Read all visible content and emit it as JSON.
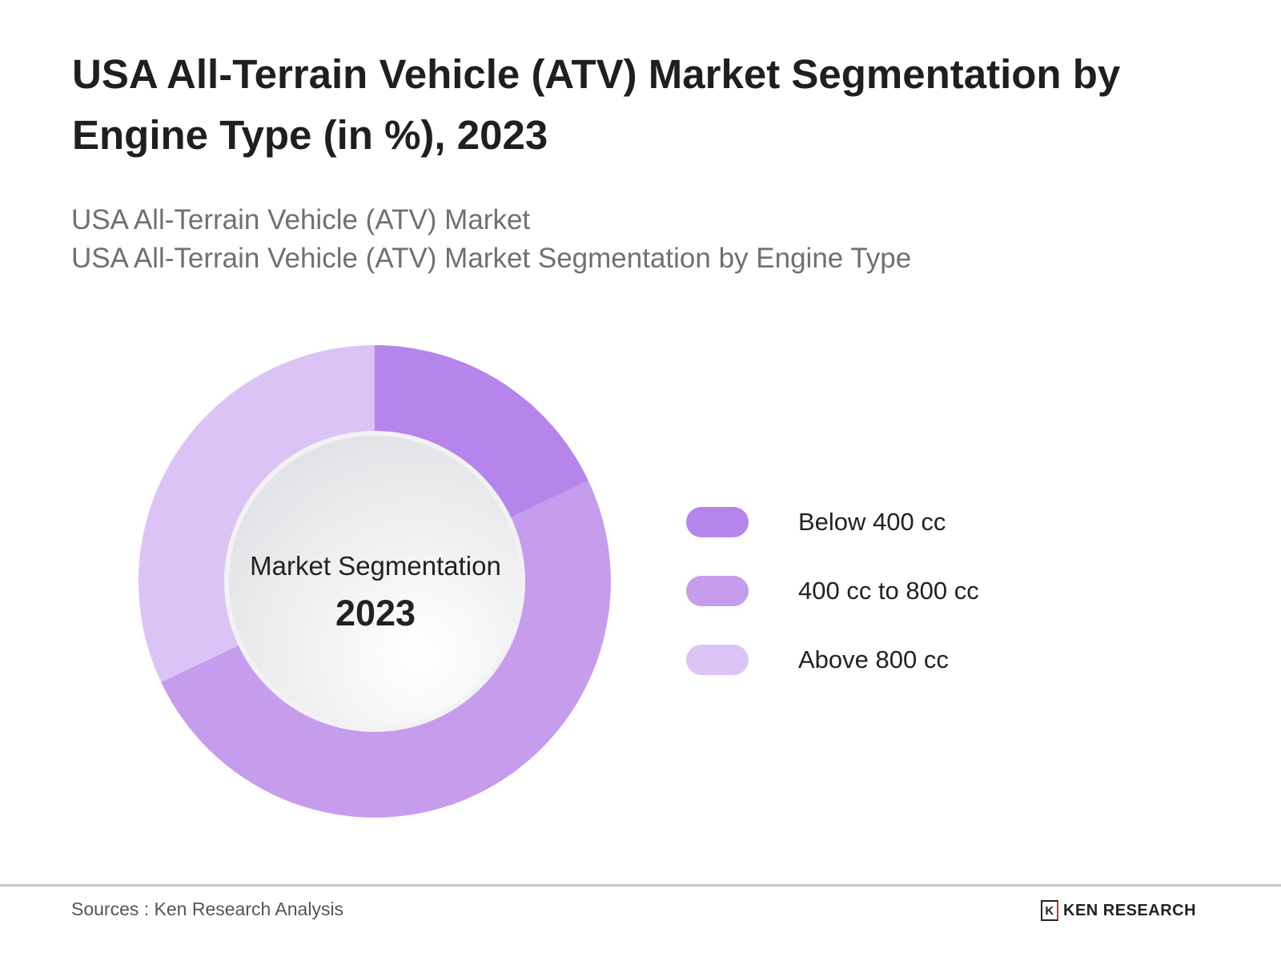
{
  "title": "USA All-Terrain Vehicle (ATV) Market Segmentation by Engine Type (in %), 2023",
  "subtitles": [
    "USA All-Terrain Vehicle (ATV) Market",
    "USA All-Terrain Vehicle (ATV) Market Segmentation by Engine Type"
  ],
  "center": {
    "label": "Market Segmentation",
    "year": "2023"
  },
  "source": "Sources : Ken Research Analysis",
  "logo_text": "KEN RESEARCH",
  "chart_data": {
    "type": "pie",
    "variant": "donut",
    "title": "USA All-Terrain Vehicle (ATV) Market Segmentation by Engine Type (in %), 2023",
    "categories": [
      "Below 400 cc",
      "400 cc to 800 cc",
      "Above 800 cc"
    ],
    "values": [
      18,
      50,
      32
    ],
    "colors": [
      "#b585eb",
      "#c69ded",
      "#dcc3f5"
    ],
    "legend_position": "right",
    "start_angle": "top, clockwise"
  }
}
